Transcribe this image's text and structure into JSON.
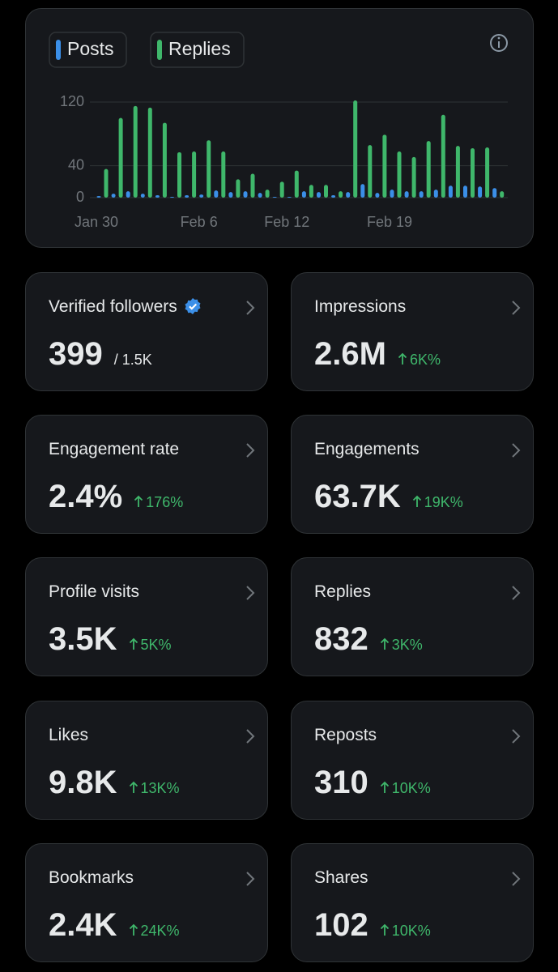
{
  "chart_data": {
    "type": "bar",
    "categories": [
      "Jan 30",
      null,
      null,
      null,
      null,
      null,
      null,
      "Feb 6",
      null,
      null,
      null,
      null,
      null,
      "Feb 12",
      null,
      null,
      null,
      null,
      null,
      null,
      "Feb 19",
      null,
      null,
      null,
      null,
      null,
      null,
      null
    ],
    "series": [
      {
        "name": "Posts",
        "color": "#3b8fe8",
        "values": [
          2,
          5,
          8,
          5,
          3,
          1,
          3,
          4,
          9,
          7,
          8,
          6,
          1,
          1,
          8,
          7,
          3,
          7,
          17,
          6,
          10,
          8,
          8,
          10,
          15,
          15,
          14,
          12
        ]
      },
      {
        "name": "Replies",
        "color": "#3fb76b",
        "values": [
          36,
          100,
          115,
          113,
          94,
          57,
          58,
          72,
          58,
          23,
          30,
          10,
          20,
          34,
          16,
          16,
          8,
          122,
          66,
          79,
          58,
          51,
          71,
          104,
          65,
          62,
          63,
          8
        ]
      }
    ],
    "ylim": [
      0,
      120
    ],
    "yticks": [
      0,
      40,
      120
    ],
    "grid": true
  },
  "cards": [
    {
      "label": "Verified followers",
      "value": "399",
      "total": "/ 1.5K",
      "verified": true
    },
    {
      "label": "Impressions",
      "value": "2.6M",
      "change": "6K%"
    },
    {
      "label": "Engagement rate",
      "value": "2.4%",
      "change": "176%"
    },
    {
      "label": "Engagements",
      "value": "63.7K",
      "change": "19K%"
    },
    {
      "label": "Profile visits",
      "value": "3.5K",
      "change": "5K%"
    },
    {
      "label": "Replies",
      "value": "832",
      "change": "3K%"
    },
    {
      "label": "Likes",
      "value": "9.8K",
      "change": "13K%"
    },
    {
      "label": "Reposts",
      "value": "310",
      "change": "10K%"
    },
    {
      "label": "Bookmarks",
      "value": "2.4K",
      "change": "24K%"
    },
    {
      "label": "Shares",
      "value": "102",
      "change": "10K%"
    }
  ]
}
